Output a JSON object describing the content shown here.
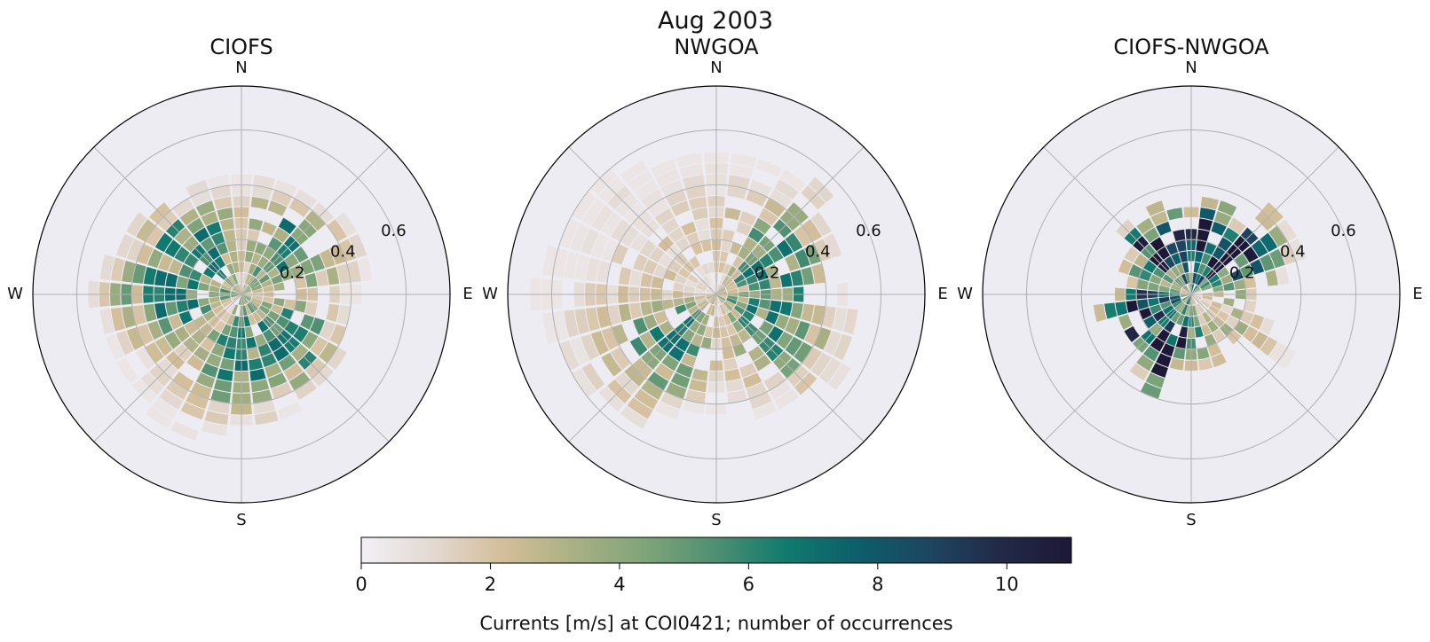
{
  "figure": {
    "suptitle": "Aug 2003"
  },
  "colors": {
    "background": "#ffffff",
    "axes_face": "#edecf3",
    "grid": "#b0b0b0",
    "spine": "#000000",
    "text": "#111111",
    "colormap": [
      "#f2f0f5",
      "#e3d9d2",
      "#d4be9a",
      "#a9b083",
      "#7fa479",
      "#4d8f72",
      "#107a6e",
      "#0d5e6a",
      "#1d4660",
      "#222a48",
      "#1c1836"
    ]
  },
  "chart_data": [
    {
      "type": "polar-histogram",
      "title": "CIOFS",
      "direction_labels": [
        "N",
        "E",
        "S",
        "W"
      ],
      "radial_ticks": [
        0.2,
        0.4,
        0.6
      ],
      "radial_tick_labels": [
        "0.2",
        "0.4",
        "0.6"
      ],
      "rlim": [
        0,
        0.76
      ],
      "n_direction_bins": 32,
      "speed_bin_width": 0.04,
      "peak_count": 7.2,
      "extent_profile": [
        0.42,
        0.44,
        0.44,
        0.42,
        0.43,
        0.46,
        0.48,
        0.46,
        0.42,
        0.4,
        0.4,
        0.42,
        0.42,
        0.44,
        0.45,
        0.47,
        0.46,
        0.5,
        0.56,
        0.54,
        0.52,
        0.5,
        0.5,
        0.52,
        0.56,
        0.52,
        0.48,
        0.46,
        0.44,
        0.4,
        0.42,
        0.42
      ],
      "concentration_bearings": [
        45,
        135,
        180,
        270,
        315
      ],
      "seed": 11
    },
    {
      "type": "polar-histogram",
      "title": "NWGOA",
      "direction_labels": [
        "N",
        "E",
        "S",
        "W"
      ],
      "radial_ticks": [
        0.2,
        0.4,
        0.6
      ],
      "radial_tick_labels": [
        "0.2",
        "0.4",
        "0.6"
      ],
      "rlim": [
        0,
        0.76
      ],
      "n_direction_bins": 32,
      "speed_bin_width": 0.04,
      "peak_count": 7.0,
      "extent_profile": [
        0.52,
        0.5,
        0.52,
        0.5,
        0.56,
        0.48,
        0.46,
        0.44,
        0.46,
        0.5,
        0.52,
        0.54,
        0.5,
        0.46,
        0.48,
        0.44,
        0.42,
        0.44,
        0.48,
        0.56,
        0.54,
        0.58,
        0.6,
        0.62,
        0.66,
        0.62,
        0.6,
        0.58,
        0.62,
        0.56,
        0.52,
        0.54
      ],
      "concentration_bearings": [
        100,
        120,
        225,
        60
      ],
      "seed": 23
    },
    {
      "type": "polar-histogram",
      "title": "CIOFS-NWGOA",
      "direction_labels": [
        "N",
        "E",
        "S",
        "W"
      ],
      "radial_ticks": [
        0.2,
        0.4,
        0.6
      ],
      "radial_tick_labels": [
        "0.2",
        "0.4",
        "0.6"
      ],
      "rlim": [
        0,
        0.76
      ],
      "n_direction_bins": 32,
      "speed_bin_width": 0.04,
      "peak_count": 11.0,
      "extent_profile": [
        0.32,
        0.34,
        0.36,
        0.3,
        0.44,
        0.42,
        0.42,
        0.36,
        0.24,
        0.24,
        0.3,
        0.42,
        0.24,
        0.2,
        0.28,
        0.26,
        0.26,
        0.26,
        0.42,
        0.34,
        0.28,
        0.32,
        0.28,
        0.34,
        0.26,
        0.24,
        0.28,
        0.26,
        0.34,
        0.32,
        0.34,
        0.34
      ],
      "concentration_bearings": [
        10,
        40,
        330,
        250,
        200
      ],
      "seed": 37
    }
  ],
  "colorbar": {
    "min": 0,
    "max": 11,
    "ticks": [
      0,
      2,
      4,
      6,
      8,
      10
    ],
    "tick_labels": [
      "0",
      "2",
      "4",
      "6",
      "8",
      "10"
    ],
    "label": "Currents [m/s] at COI0421; number of occurrences"
  }
}
